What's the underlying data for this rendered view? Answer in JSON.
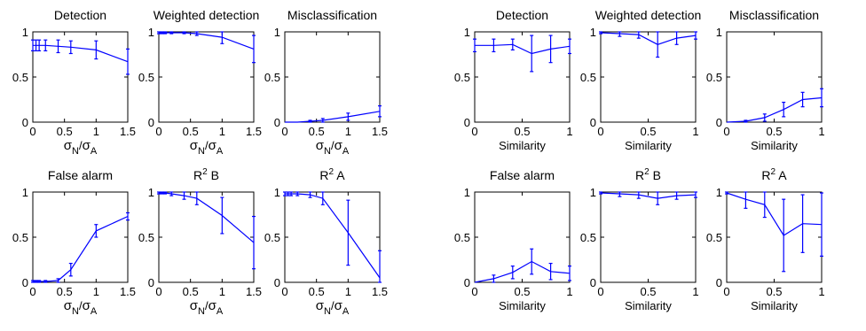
{
  "chart_data": [
    {
      "type": "line",
      "title": "Detection",
      "xlabel": "σN/σA",
      "xlim": [
        0,
        1.5
      ],
      "ylim": [
        0,
        1
      ],
      "xticks": [
        "0",
        "0.5",
        "1",
        "1.5"
      ],
      "yticks": [
        "0",
        "0.5",
        "1"
      ],
      "x": [
        0,
        0.05,
        0.1,
        0.2,
        0.4,
        0.6,
        1.0,
        1.5
      ],
      "y": [
        0.85,
        0.85,
        0.85,
        0.85,
        0.84,
        0.83,
        0.8,
        0.67
      ],
      "err": [
        0.06,
        0.06,
        0.06,
        0.06,
        0.07,
        0.07,
        0.1,
        0.14
      ]
    },
    {
      "type": "line",
      "title": "Weighted detection",
      "xlabel": "σN/σA",
      "xlim": [
        0,
        1.5
      ],
      "ylim": [
        0,
        1
      ],
      "xticks": [
        "0",
        "0.5",
        "1",
        "1.5"
      ],
      "yticks": [
        "0",
        "0.5",
        "1"
      ],
      "x": [
        0,
        0.05,
        0.1,
        0.2,
        0.4,
        0.6,
        1.0,
        1.5
      ],
      "y": [
        0.99,
        0.99,
        0.99,
        0.99,
        0.99,
        0.98,
        0.94,
        0.81
      ],
      "err": [
        0.01,
        0.01,
        0.01,
        0.01,
        0.01,
        0.02,
        0.07,
        0.15
      ]
    },
    {
      "type": "line",
      "title": "Misclassification",
      "xlabel": "σN/σA",
      "xlim": [
        0,
        1.5
      ],
      "ylim": [
        0,
        1
      ],
      "xticks": [
        "0",
        "0.5",
        "1",
        "1.5"
      ],
      "yticks": [
        "0",
        "0.5",
        "1"
      ],
      "x": [
        0,
        0.05,
        0.1,
        0.2,
        0.4,
        0.6,
        1.0,
        1.5
      ],
      "y": [
        0,
        0,
        0,
        0,
        0.01,
        0.02,
        0.06,
        0.12
      ],
      "err": [
        0,
        0,
        0,
        0,
        0.01,
        0.02,
        0.04,
        0.06
      ]
    },
    {
      "type": "line",
      "title": "Detection",
      "xlabel": "Similarity",
      "xlim": [
        0,
        1
      ],
      "ylim": [
        0,
        1
      ],
      "xticks": [
        "0",
        "0.5",
        "1"
      ],
      "yticks": [
        "0",
        "0.5",
        "1"
      ],
      "x": [
        0,
        0.2,
        0.4,
        0.6,
        0.8,
        1.0
      ],
      "y": [
        0.85,
        0.85,
        0.86,
        0.76,
        0.81,
        0.84
      ],
      "err": [
        0.07,
        0.07,
        0.06,
        0.2,
        0.15,
        0.08
      ]
    },
    {
      "type": "line",
      "title": "Weighted detection",
      "xlabel": "Similarity",
      "xlim": [
        0,
        1
      ],
      "ylim": [
        0,
        1
      ],
      "xticks": [
        "0",
        "0.5",
        "1"
      ],
      "yticks": [
        "0",
        "0.5",
        "1"
      ],
      "x": [
        0,
        0.2,
        0.4,
        0.6,
        0.8,
        1.0
      ],
      "y": [
        0.99,
        0.98,
        0.97,
        0.86,
        0.93,
        0.96
      ],
      "err": [
        0.01,
        0.03,
        0.04,
        0.14,
        0.07,
        0.04
      ]
    },
    {
      "type": "line",
      "title": "Misclassification",
      "xlabel": "Similarity",
      "xlim": [
        0,
        1
      ],
      "ylim": [
        0,
        1
      ],
      "xticks": [
        "0",
        "0.5",
        "1"
      ],
      "yticks": [
        "0",
        "0.5",
        "1"
      ],
      "x": [
        0,
        0.2,
        0.4,
        0.6,
        0.8,
        1.0
      ],
      "y": [
        0,
        0.01,
        0.05,
        0.14,
        0.25,
        0.27
      ],
      "err": [
        0,
        0.01,
        0.04,
        0.08,
        0.08,
        0.1
      ]
    },
    {
      "type": "line",
      "title": "False alarm",
      "xlabel": "σN/σA",
      "xlim": [
        0,
        1.5
      ],
      "ylim": [
        0,
        1
      ],
      "xticks": [
        "0",
        "0.5",
        "1",
        "1.5"
      ],
      "yticks": [
        "0",
        "0.5",
        "1"
      ],
      "x": [
        0,
        0.05,
        0.1,
        0.2,
        0.4,
        0.6,
        1.0,
        1.5
      ],
      "y": [
        0.01,
        0.01,
        0.01,
        0.01,
        0.02,
        0.14,
        0.57,
        0.73
      ],
      "err": [
        0.01,
        0.01,
        0.01,
        0.01,
        0.02,
        0.07,
        0.07,
        0.04
      ]
    },
    {
      "type": "line",
      "title": "R² B",
      "xlabel": "σN/σA",
      "xlim": [
        0,
        1.5
      ],
      "ylim": [
        0,
        1
      ],
      "xticks": [
        "0",
        "0.5",
        "1",
        "1.5"
      ],
      "yticks": [
        "0",
        "0.5",
        "1"
      ],
      "x": [
        0,
        0.05,
        0.1,
        0.2,
        0.4,
        0.6,
        1.0,
        1.5
      ],
      "y": [
        0.99,
        0.99,
        0.99,
        0.98,
        0.96,
        0.93,
        0.74,
        0.44
      ],
      "err": [
        0.01,
        0.01,
        0.01,
        0.02,
        0.04,
        0.07,
        0.2,
        0.29
      ]
    },
    {
      "type": "line",
      "title": "R² A",
      "xlabel": "σN/σA",
      "xlim": [
        0,
        1.5
      ],
      "ylim": [
        0,
        1
      ],
      "xticks": [
        "0",
        "0.5",
        "1",
        "1.5"
      ],
      "yticks": [
        "0",
        "0.5",
        "1"
      ],
      "x": [
        0,
        0.05,
        0.1,
        0.2,
        0.4,
        0.6,
        1.0,
        1.5
      ],
      "y": [
        0.98,
        0.98,
        0.98,
        0.98,
        0.97,
        0.93,
        0.55,
        0.05
      ],
      "err": [
        0.02,
        0.02,
        0.02,
        0.02,
        0.03,
        0.07,
        0.36,
        0.3
      ]
    },
    {
      "type": "line",
      "title": "False alarm",
      "xlabel": "Similarity",
      "xlim": [
        0,
        1
      ],
      "ylim": [
        0,
        1
      ],
      "xticks": [
        "0",
        "0.5",
        "1"
      ],
      "yticks": [
        "0",
        "0.5",
        "1"
      ],
      "x": [
        0,
        0.2,
        0.4,
        0.6,
        0.8,
        1.0
      ],
      "y": [
        0,
        0.04,
        0.11,
        0.23,
        0.12,
        0.1
      ],
      "err": [
        0,
        0.04,
        0.07,
        0.14,
        0.09,
        0.08
      ]
    },
    {
      "type": "line",
      "title": "R² B",
      "xlabel": "Similarity",
      "xlim": [
        0,
        1
      ],
      "ylim": [
        0,
        1
      ],
      "xticks": [
        "0",
        "0.5",
        "1"
      ],
      "yticks": [
        "0",
        "0.5",
        "1"
      ],
      "x": [
        0,
        0.2,
        0.4,
        0.6,
        0.8,
        1.0
      ],
      "y": [
        0.99,
        0.98,
        0.97,
        0.93,
        0.96,
        0.97
      ],
      "err": [
        0.01,
        0.03,
        0.04,
        0.07,
        0.04,
        0.03
      ]
    },
    {
      "type": "line",
      "title": "R² A",
      "xlabel": "Similarity",
      "xlim": [
        0,
        1
      ],
      "ylim": [
        0,
        1
      ],
      "xticks": [
        "0",
        "0.5",
        "1"
      ],
      "yticks": [
        "0",
        "0.5",
        "1"
      ],
      "x": [
        0,
        0.2,
        0.4,
        0.6,
        0.8,
        1.0
      ],
      "y": [
        0.99,
        0.92,
        0.86,
        0.52,
        0.65,
        0.64
      ],
      "err": [
        0.01,
        0.1,
        0.14,
        0.4,
        0.32,
        0.35
      ]
    }
  ]
}
